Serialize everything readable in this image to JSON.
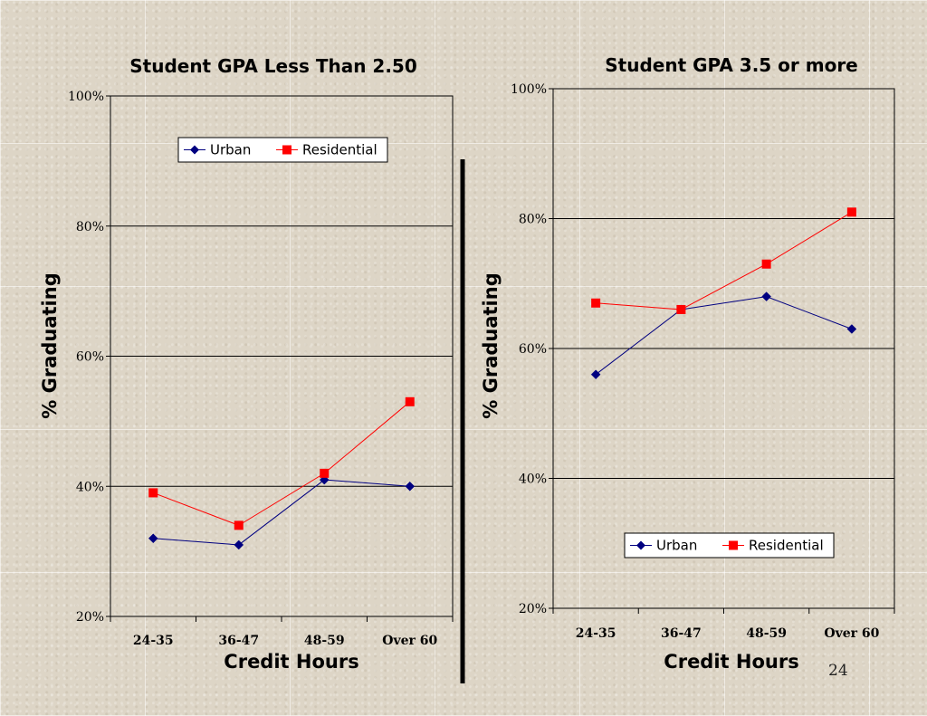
{
  "slide": {
    "page_number": "24"
  },
  "series_colors": {
    "Urban": "#000080",
    "Residential": "#ff0000"
  },
  "chart_data": [
    {
      "type": "line",
      "title": "Student GPA Less Than 2.50",
      "xlabel": "Credit Hours",
      "ylabel": "% Graduating",
      "categories": [
        "24-35",
        "36-47",
        "48-59",
        "Over 60"
      ],
      "ylim": [
        20,
        100
      ],
      "yticks": [
        20,
        40,
        60,
        80,
        100
      ],
      "ytick_labels": [
        "20%",
        "40%",
        "60%",
        "80%",
        "100%"
      ],
      "grid": "horizontal",
      "legend": [
        "Urban",
        "Residential"
      ],
      "legend_placement": "top-right",
      "series": [
        {
          "name": "Urban",
          "marker": "diamond",
          "values": [
            32,
            31,
            41,
            40
          ]
        },
        {
          "name": "Residential",
          "marker": "square",
          "values": [
            39,
            34,
            42,
            53
          ]
        }
      ]
    },
    {
      "type": "line",
      "title": "Student GPA 3.5 or more",
      "xlabel": "Credit Hours",
      "ylabel": "% Graduating",
      "categories": [
        "24-35",
        "36-47",
        "48-59",
        "Over 60"
      ],
      "ylim": [
        20,
        100
      ],
      "yticks": [
        20,
        40,
        60,
        80,
        100
      ],
      "ytick_labels": [
        "20%",
        "40%",
        "60%",
        "80%",
        "100%"
      ],
      "grid": "horizontal",
      "legend": [
        "Urban",
        "Residential"
      ],
      "legend_placement": "bottom-right",
      "series": [
        {
          "name": "Urban",
          "marker": "diamond",
          "values": [
            56,
            66,
            68,
            63
          ]
        },
        {
          "name": "Residential",
          "marker": "square",
          "values": [
            67,
            66,
            73,
            81
          ]
        }
      ]
    }
  ]
}
